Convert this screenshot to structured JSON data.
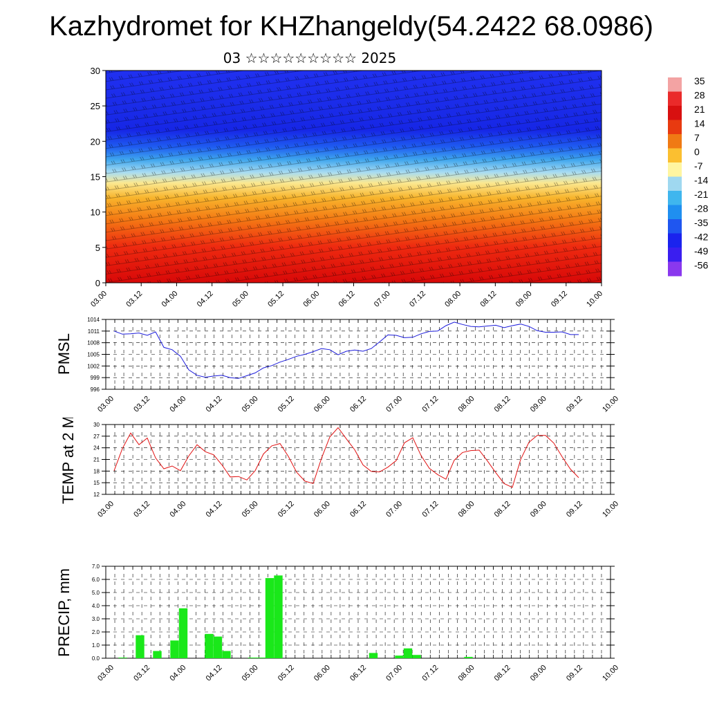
{
  "title": "Kazhydromet for KHZhangeldy(54.2422 68.0986)",
  "subtitle": "03 ☆☆☆☆☆☆☆☆☆ 2025",
  "colorbar": {
    "labels": [
      "35",
      "28",
      "21",
      "14",
      "7",
      "0",
      "-7",
      "-14",
      "-21",
      "-28",
      "-35",
      "-42",
      "-49",
      "-56"
    ],
    "colors": [
      "#f3a3a3",
      "#ea2a2a",
      "#d81010",
      "#e83a10",
      "#f07a14",
      "#fbbf30",
      "#fff5a0",
      "#9fd8f0",
      "#3fb6ee",
      "#1f8ff0",
      "#1f56f0",
      "#1a23ee",
      "#3a1ef0",
      "#8a38ee"
    ]
  },
  "x_ticks": [
    "03.00",
    "03.12",
    "04.00",
    "04.12",
    "05.00",
    "05.12",
    "06.00",
    "06.12",
    "07.00",
    "07.12",
    "08.00",
    "08.12",
    "09.00",
    "09.12",
    "10.00"
  ],
  "chart_data": [
    {
      "type": "heatmap",
      "yticks": [
        "0",
        "5",
        "10",
        "15",
        "20",
        "25",
        "30"
      ],
      "ylim": [
        0,
        30
      ],
      "note": "vertical temperature cross-section with wind barbs"
    },
    {
      "type": "line",
      "ylabel": "PMSL",
      "yticks": [
        "996",
        "999",
        "1002",
        "1005",
        "1008",
        "1011",
        "1014"
      ],
      "ylim": [
        996,
        1014
      ],
      "color": "#1a1adb",
      "values": [
        1011.0,
        1010.2,
        1010.3,
        1010.5,
        1009.9,
        1010.8,
        1006.8,
        1006.2,
        1004.5,
        1001.0,
        999.6,
        999.1,
        999.4,
        999.6,
        999.0,
        998.8,
        999.5,
        1000.2,
        1001.5,
        1002.1,
        1003.0,
        1003.7,
        1004.5,
        1005.0,
        1005.7,
        1006.5,
        1006.2,
        1004.9,
        1005.8,
        1006.1,
        1005.8,
        1006.5,
        1008.2,
        1010.0,
        1009.9,
        1009.3,
        1009.4,
        1010.3,
        1010.9,
        1011.0,
        1012.4,
        1013.3,
        1012.7,
        1012.2,
        1012.1,
        1012.3,
        1012.5,
        1011.9,
        1012.4,
        1012.8,
        1012.2,
        1011.1,
        1010.7,
        1010.7,
        1010.8,
        1010.1,
        1010.1
      ]
    },
    {
      "type": "line",
      "ylabel": "TEMP at 2 M",
      "yticks": [
        "12",
        "15",
        "18",
        "21",
        "24",
        "27",
        "30"
      ],
      "ylim": [
        12,
        30
      ],
      "color": "#e01010",
      "values": [
        18.1,
        23.8,
        27.8,
        24.8,
        26.5,
        21.4,
        18.6,
        19.3,
        18.1,
        21.9,
        24.8,
        23.0,
        22.2,
        19.6,
        16.5,
        16.6,
        15.7,
        18.1,
        22.4,
        24.5,
        25.1,
        21.8,
        17.7,
        15.4,
        14.8,
        21.3,
        26.8,
        29.2,
        26.3,
        23.5,
        19.6,
        17.9,
        17.8,
        19.0,
        20.7,
        25.3,
        26.6,
        22.0,
        18.7,
        17.1,
        15.9,
        20.8,
        22.8,
        23.3,
        23.4,
        20.6,
        17.6,
        14.8,
        13.8,
        21.0,
        25.4,
        27.2,
        27.2,
        25.2,
        21.7,
        18.5,
        16.3
      ]
    },
    {
      "type": "bar",
      "ylabel": "PRECIP, mm",
      "yticks": [
        "0.0",
        "1.0",
        "2.0",
        "3.0",
        "4.0",
        "5.0",
        "6.0",
        "7.0"
      ],
      "ylim": [
        0,
        7
      ],
      "color": "#1ae81a",
      "values": [
        0,
        0.05,
        0,
        1.75,
        0,
        0.55,
        0,
        1.35,
        3.8,
        0,
        0,
        1.85,
        1.65,
        0.55,
        0,
        0,
        0.05,
        0.05,
        6.1,
        6.3,
        0,
        0,
        0,
        0,
        0,
        0,
        0,
        0,
        0,
        0,
        0.4,
        0,
        0,
        0.2,
        0.75,
        0.25,
        0,
        0,
        0,
        0,
        0,
        0.1,
        0,
        0,
        0,
        0,
        0,
        0,
        0,
        0,
        0,
        0,
        0,
        0,
        0,
        0,
        0
      ]
    }
  ]
}
